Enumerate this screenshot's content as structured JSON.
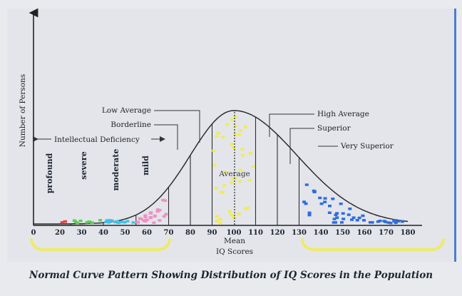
{
  "chart_data": {
    "type": "area",
    "ylabel": "Number of Persons",
    "xlabel": "IQ Scores",
    "mean_label": "Mean",
    "x_ticks": [
      0,
      20,
      30,
      40,
      50,
      60,
      70,
      80,
      90,
      100,
      110,
      120,
      130,
      140,
      150,
      160,
      170,
      180
    ],
    "boundaries": [
      25,
      40,
      55,
      70,
      80,
      90,
      110,
      120,
      130
    ],
    "regions": {
      "profound": {
        "label": "profound",
        "range": [
          20,
          25
        ],
        "color": "#e2474b"
      },
      "severe": {
        "label": "severe",
        "range": [
          25,
          40
        ],
        "color": "#5ccb58"
      },
      "moderate": {
        "label": "moderate",
        "range": [
          40,
          55
        ],
        "color": "#3ec2ec"
      },
      "mild": {
        "label": "mild",
        "range": [
          55,
          70
        ],
        "color": "#ee90c2"
      },
      "average": {
        "label": "Average",
        "range": [
          90,
          110
        ],
        "color": "#f2ec4e"
      },
      "very_superior": {
        "label": "Very Superior",
        "range": [
          130,
          180
        ],
        "color": "#2f6de0"
      }
    },
    "annotations": {
      "low_average": "Low Average",
      "borderline": "Borderline",
      "intellectual_deficiency": "Intellectual Deficiency",
      "high_average": "High Average",
      "superior": "Superior",
      "very_superior": "Very Superior"
    }
  },
  "caption": "Normal Curve Pattern Showing Distribution of IQ Scores in the Population"
}
